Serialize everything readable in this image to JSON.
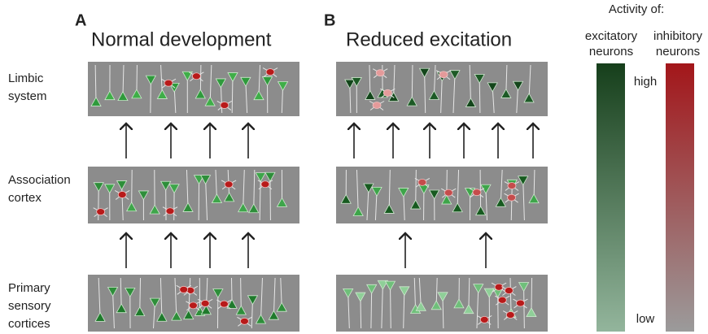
{
  "panels": [
    {
      "letter": "A",
      "title": "Normal development"
    },
    {
      "letter": "B",
      "title": "Reduced excitation"
    }
  ],
  "rows": [
    {
      "lines": [
        "Limbic",
        "system"
      ]
    },
    {
      "lines": [
        "Association",
        "cortex"
      ]
    },
    {
      "lines": [
        "Primary",
        "sensory",
        "cortices"
      ]
    }
  ],
  "legend": {
    "title": "Activity of:",
    "excitatory": [
      "excitatory",
      "neurons"
    ],
    "inhibitory": [
      "inhibitory",
      "neurons"
    ],
    "high": "high",
    "low": "low"
  }
}
